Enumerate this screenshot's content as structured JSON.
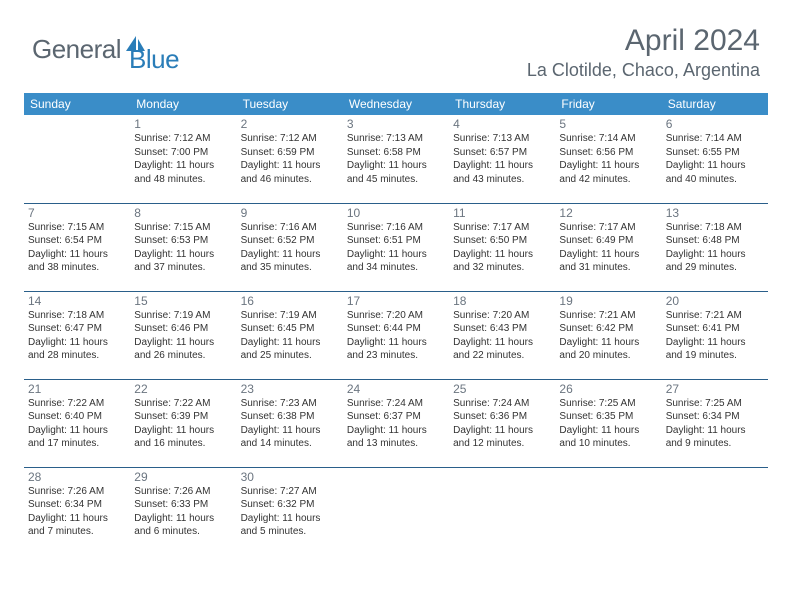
{
  "logo": {
    "text1": "General",
    "text2": "Blue",
    "text1_color": "#5b6670",
    "text2_color": "#2a7db8",
    "icon_color": "#2a7db8"
  },
  "title": "April 2024",
  "location": "La Clotilde, Chaco, Argentina",
  "colors": {
    "header_bg": "#3a8dc8",
    "header_text": "#ffffff",
    "row_border": "#2a5f8a",
    "daynum": "#6b7580",
    "body_text": "#333333",
    "background": "#ffffff"
  },
  "fonts": {
    "title_size": 30,
    "location_size": 18,
    "weekday_size": 12,
    "daynum_size": 12,
    "info_size": 10
  },
  "weekdays": [
    "Sunday",
    "Monday",
    "Tuesday",
    "Wednesday",
    "Thursday",
    "Friday",
    "Saturday"
  ],
  "weeks": [
    [
      null,
      {
        "n": "1",
        "sr": "7:12 AM",
        "ss": "7:00 PM",
        "dl": "11 hours and 48 minutes."
      },
      {
        "n": "2",
        "sr": "7:12 AM",
        "ss": "6:59 PM",
        "dl": "11 hours and 46 minutes."
      },
      {
        "n": "3",
        "sr": "7:13 AM",
        "ss": "6:58 PM",
        "dl": "11 hours and 45 minutes."
      },
      {
        "n": "4",
        "sr": "7:13 AM",
        "ss": "6:57 PM",
        "dl": "11 hours and 43 minutes."
      },
      {
        "n": "5",
        "sr": "7:14 AM",
        "ss": "6:56 PM",
        "dl": "11 hours and 42 minutes."
      },
      {
        "n": "6",
        "sr": "7:14 AM",
        "ss": "6:55 PM",
        "dl": "11 hours and 40 minutes."
      }
    ],
    [
      {
        "n": "7",
        "sr": "7:15 AM",
        "ss": "6:54 PM",
        "dl": "11 hours and 38 minutes."
      },
      {
        "n": "8",
        "sr": "7:15 AM",
        "ss": "6:53 PM",
        "dl": "11 hours and 37 minutes."
      },
      {
        "n": "9",
        "sr": "7:16 AM",
        "ss": "6:52 PM",
        "dl": "11 hours and 35 minutes."
      },
      {
        "n": "10",
        "sr": "7:16 AM",
        "ss": "6:51 PM",
        "dl": "11 hours and 34 minutes."
      },
      {
        "n": "11",
        "sr": "7:17 AM",
        "ss": "6:50 PM",
        "dl": "11 hours and 32 minutes."
      },
      {
        "n": "12",
        "sr": "7:17 AM",
        "ss": "6:49 PM",
        "dl": "11 hours and 31 minutes."
      },
      {
        "n": "13",
        "sr": "7:18 AM",
        "ss": "6:48 PM",
        "dl": "11 hours and 29 minutes."
      }
    ],
    [
      {
        "n": "14",
        "sr": "7:18 AM",
        "ss": "6:47 PM",
        "dl": "11 hours and 28 minutes."
      },
      {
        "n": "15",
        "sr": "7:19 AM",
        "ss": "6:46 PM",
        "dl": "11 hours and 26 minutes."
      },
      {
        "n": "16",
        "sr": "7:19 AM",
        "ss": "6:45 PM",
        "dl": "11 hours and 25 minutes."
      },
      {
        "n": "17",
        "sr": "7:20 AM",
        "ss": "6:44 PM",
        "dl": "11 hours and 23 minutes."
      },
      {
        "n": "18",
        "sr": "7:20 AM",
        "ss": "6:43 PM",
        "dl": "11 hours and 22 minutes."
      },
      {
        "n": "19",
        "sr": "7:21 AM",
        "ss": "6:42 PM",
        "dl": "11 hours and 20 minutes."
      },
      {
        "n": "20",
        "sr": "7:21 AM",
        "ss": "6:41 PM",
        "dl": "11 hours and 19 minutes."
      }
    ],
    [
      {
        "n": "21",
        "sr": "7:22 AM",
        "ss": "6:40 PM",
        "dl": "11 hours and 17 minutes."
      },
      {
        "n": "22",
        "sr": "7:22 AM",
        "ss": "6:39 PM",
        "dl": "11 hours and 16 minutes."
      },
      {
        "n": "23",
        "sr": "7:23 AM",
        "ss": "6:38 PM",
        "dl": "11 hours and 14 minutes."
      },
      {
        "n": "24",
        "sr": "7:24 AM",
        "ss": "6:37 PM",
        "dl": "11 hours and 13 minutes."
      },
      {
        "n": "25",
        "sr": "7:24 AM",
        "ss": "6:36 PM",
        "dl": "11 hours and 12 minutes."
      },
      {
        "n": "26",
        "sr": "7:25 AM",
        "ss": "6:35 PM",
        "dl": "11 hours and 10 minutes."
      },
      {
        "n": "27",
        "sr": "7:25 AM",
        "ss": "6:34 PM",
        "dl": "11 hours and 9 minutes."
      }
    ],
    [
      {
        "n": "28",
        "sr": "7:26 AM",
        "ss": "6:34 PM",
        "dl": "11 hours and 7 minutes."
      },
      {
        "n": "29",
        "sr": "7:26 AM",
        "ss": "6:33 PM",
        "dl": "11 hours and 6 minutes."
      },
      {
        "n": "30",
        "sr": "7:27 AM",
        "ss": "6:32 PM",
        "dl": "11 hours and 5 minutes."
      },
      null,
      null,
      null,
      null
    ]
  ],
  "labels": {
    "sunrise": "Sunrise: ",
    "sunset": "Sunset: ",
    "daylight": "Daylight: "
  }
}
